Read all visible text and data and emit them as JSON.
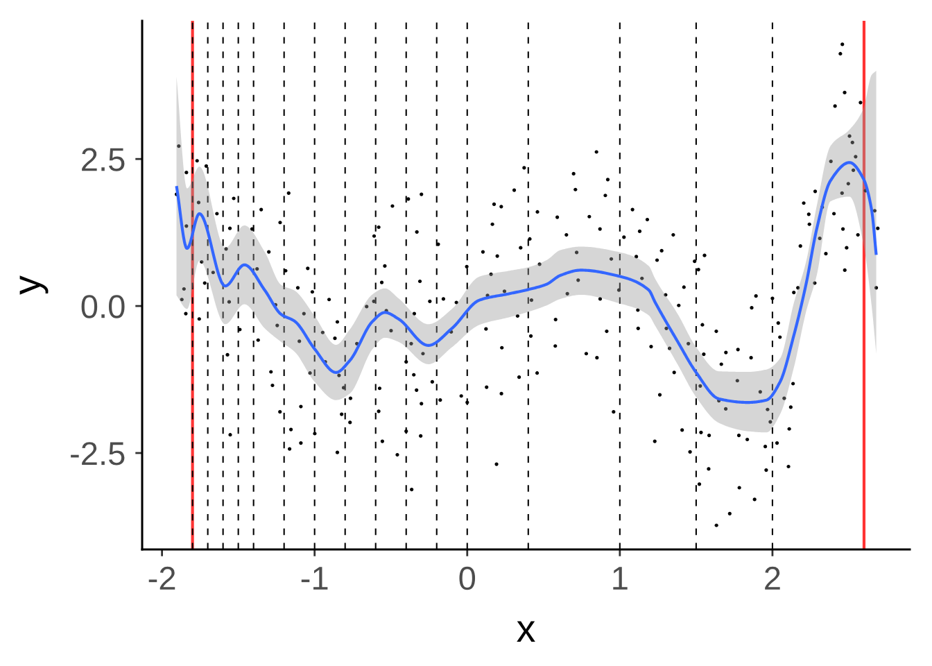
{
  "chart_data": {
    "type": "scatter",
    "xlabel": "x",
    "ylabel": "y",
    "xlim": [
      -2.13,
      2.9
    ],
    "ylim": [
      -4.14,
      4.85
    ],
    "xticks": [
      -2,
      -1,
      0,
      1,
      2
    ],
    "yticks": [
      -2.5,
      {
        "value": 0,
        "label": "0.0"
      },
      2.5
    ],
    "grid": false,
    "marker": "circle",
    "series": [
      {
        "color": "#000000",
        "x": [
          -1.89,
          -1.84,
          -1.77,
          -1.71,
          -1.905,
          -1.76,
          -1.64,
          -1.53,
          -1.555,
          -1.84,
          -1.41,
          -1.35,
          -1.58,
          -1.3,
          -1.377,
          -1.74,
          -1.665,
          -1.72,
          -1.856,
          -1.226,
          -1.17,
          -1.19,
          -1.045,
          -1.11,
          -0.49,
          -0.61,
          -0.58,
          -0.54,
          -0.56,
          -1.87,
          -1.844,
          -1.756,
          -1.56,
          -1.49,
          -1.571,
          -1.37,
          -1.286,
          -1.276,
          -1.256,
          -1.245,
          -1.227,
          -1.553,
          -1.155,
          -1.164,
          -1.09,
          -1.09,
          -1.07,
          -1.1,
          -1.03,
          -0.999,
          -1.015,
          -0.905,
          -0.947,
          -0.851,
          -0.867,
          -0.93,
          -0.84,
          -0.81,
          -0.765,
          -0.823,
          -0.768,
          -0.851,
          -0.723,
          -0.659,
          -0.612,
          -0.53,
          -0.574,
          -0.58,
          -0.556,
          -0.458,
          -0.499,
          -0.386,
          -0.3,
          -0.33,
          -0.19,
          -0.003,
          0.156,
          -0.31,
          0.103,
          0.176,
          0.223,
          0.165,
          0.197,
          0.308,
          0.373,
          0.35,
          0.41,
          0.46,
          0.59,
          0.65,
          0.697,
          0.709,
          0.8,
          0.847,
          0.921,
          0.905,
          0.87,
          1.027,
          1.083,
          1.13,
          1.18,
          1.108,
          0.717,
          0.474,
          0.727,
          0.944,
          1.145,
          -0.4,
          -0.35,
          -0.332,
          -0.3,
          -0.229,
          -0.177,
          -0.039,
          0.0,
          -0.4,
          -0.305,
          -0.364,
          0.127,
          0.224,
          0.192,
          0.34,
          0.458,
          0.959,
          1.229,
          -0.245,
          -0.156,
          -0.347,
          -0.367,
          -0.29,
          -0.105,
          -0.071,
          0.133,
          0.123,
          0.227,
          0.244,
          0.33,
          0.417,
          0.421,
          0.579,
          0.577,
          0.656,
          0.78,
          0.85,
          0.914,
          0.871,
          0.994,
          1.118,
          1.12,
          1.205,
          1.35,
          1.274,
          1.244,
          1.49,
          1.555,
          1.515,
          1.42,
          1.3,
          1.386,
          1.305,
          1.326,
          1.356,
          1.449,
          1.262,
          1.541,
          1.632,
          1.55,
          1.695,
          1.665,
          1.774,
          1.86,
          1.892,
          1.864,
          2.0,
          2.14,
          2.038,
          2.049,
          1.77,
          1.92,
          1.527,
          1.649,
          1.694,
          1.968,
          1.986,
          2.077,
          2.135,
          2.12,
          2.11,
          1.408,
          1.532,
          1.585,
          1.46,
          1.78,
          1.835,
          1.953,
          2.03,
          1.582,
          1.959,
          2.105,
          1.521,
          1.783,
          1.883,
          1.72,
          1.633,
          2.458,
          2.445,
          2.473,
          2.41,
          2.577,
          2.505,
          2.524,
          2.545,
          2.383,
          2.53,
          2.497,
          2.456,
          2.61,
          2.28,
          2.205,
          2.326,
          2.238,
          2.403,
          2.67,
          2.242,
          2.462,
          2.69,
          2.56,
          2.31,
          2.183,
          2.486,
          2.35,
          2.474,
          2.277,
          2.68,
          2.167
        ],
        "values": [
          2.72,
          2.27,
          2.47,
          2.38,
          1.9,
          1.76,
          1.57,
          1.83,
          1.32,
          1.36,
          1.31,
          1.64,
          0.97,
          0.92,
          0.63,
          0.75,
          0.57,
          0.39,
          0.29,
          1.42,
          1.92,
          0.6,
          0.64,
          0.31,
          1.7,
          1.19,
          1.34,
          0.68,
          0.4,
          0.11,
          -0.13,
          -0.22,
          0.07,
          -0.4,
          -0.83,
          -0.58,
          -1.12,
          -1.35,
          0.02,
          -0.33,
          -1.8,
          -2.19,
          -2.1,
          -2.43,
          -1.71,
          -2.33,
          -0.13,
          -0.6,
          -1.14,
          -2.17,
          0.24,
          0.11,
          -0.45,
          -0.27,
          -0.55,
          -0.95,
          -1.18,
          -1.39,
          -1.57,
          -1.84,
          -1.98,
          -2.49,
          -0.64,
          -0.01,
          0.08,
          -0.08,
          -1.4,
          -1.79,
          -2.3,
          -2.53,
          -0.42,
          1.82,
          1.9,
          1.26,
          1.05,
          0.67,
          0.54,
          0.42,
          0.92,
          1.73,
          1.69,
          1.39,
          0.85,
          1.97,
          2.35,
          0.99,
          1.14,
          1.6,
          1.51,
          1.21,
          2.25,
          1.98,
          1.52,
          2.62,
          2.15,
          1.88,
          1.31,
          1.17,
          1.64,
          1.27,
          1.47,
          0.84,
          0.91,
          0.71,
          0.44,
          0.8,
          0.47,
          -0.95,
          -1.17,
          -1.43,
          -1.66,
          -1.29,
          -1.6,
          -1.53,
          -1.64,
          -2.13,
          -2.21,
          -3.12,
          -1.38,
          -1.49,
          -2.69,
          -1.21,
          -1.14,
          -1.8,
          -2.3,
          0.08,
          0.12,
          -0.13,
          -0.64,
          -0.81,
          -0.44,
          0.06,
          0.18,
          -0.39,
          -0.71,
          0.25,
          -0.17,
          -0.51,
          0.1,
          -0.23,
          -0.68,
          0.21,
          -0.81,
          -0.88,
          -0.43,
          0.12,
          0.27,
          -0.07,
          -0.38,
          -0.69,
          1.21,
          0.94,
          0.78,
          0.76,
          0.86,
          0.62,
          0.32,
          0.19,
          0.01,
          -0.38,
          -0.72,
          -1.13,
          -0.64,
          -1.51,
          -0.32,
          -0.43,
          -0.82,
          -0.79,
          -0.99,
          -0.74,
          -0.88,
          0.17,
          -0.03,
          0.13,
          0.23,
          -0.29,
          -0.53,
          -1.27,
          -1.46,
          -1.36,
          -1.61,
          -1.75,
          -1.76,
          -1.97,
          -1.57,
          -1.32,
          -1.72,
          -2.09,
          -2.11,
          -2.15,
          -2.2,
          -2.48,
          -2.2,
          -2.27,
          -2.39,
          -2.33,
          -2.77,
          -2.79,
          -2.73,
          -3.03,
          -3.09,
          -3.29,
          -3.53,
          -3.73,
          4.45,
          4.29,
          3.63,
          3.4,
          3.46,
          2.89,
          2.78,
          2.54,
          2.46,
          2.31,
          2.08,
          1.92,
          1.96,
          1.95,
          1.75,
          1.68,
          1.56,
          1.57,
          1.62,
          1.39,
          1.31,
          1.32,
          1.21,
          1.15,
          1.02,
          0.99,
          0.89,
          0.61,
          0.39,
          0.31,
          0.31
        ]
      },
      {
        "type": "line",
        "color": "#3366ff",
        "marker": "none",
        "line_style": "solid",
        "x": [
          -1.905,
          -1.836,
          -1.755,
          -1.586,
          -1.46,
          -1.327,
          -1.22,
          -1.13,
          -1.0,
          -0.86,
          -0.77,
          -0.62,
          -0.54,
          -0.45,
          -0.255,
          -0.1,
          0.08,
          0.277,
          0.4,
          0.52,
          0.61,
          0.745,
          0.99,
          1.19,
          1.23,
          1.38,
          1.5,
          1.65,
          1.84,
          1.96,
          2.05,
          2.14,
          2.22,
          2.29,
          2.38,
          2.505,
          2.595,
          2.65,
          2.68
        ],
        "values": [
          2.04,
          0.98,
          1.57,
          0.34,
          0.7,
          0.27,
          -0.14,
          -0.26,
          -0.73,
          -1.13,
          -0.93,
          -0.26,
          -0.11,
          -0.22,
          -0.67,
          -0.38,
          0.1,
          0.21,
          0.28,
          0.37,
          0.52,
          0.61,
          0.51,
          0.27,
          0.07,
          -0.61,
          -1.13,
          -1.58,
          -1.64,
          -1.6,
          -1.29,
          -0.5,
          0.37,
          1.31,
          2.13,
          2.44,
          2.17,
          1.63,
          0.87
        ],
        "upper": [
          3.9,
          2.0,
          2.37,
          0.99,
          1.37,
          0.92,
          0.36,
          0.26,
          -0.17,
          -0.66,
          -0.4,
          0.2,
          0.3,
          0.13,
          -0.31,
          -0.05,
          0.5,
          0.6,
          0.66,
          0.78,
          0.95,
          1.01,
          0.92,
          0.68,
          0.47,
          -0.14,
          -0.7,
          -1.11,
          -1.12,
          -1.08,
          -0.89,
          0.05,
          0.75,
          1.7,
          2.72,
          3.0,
          3.35,
          3.93,
          4.0
        ],
        "lower": [
          0.18,
          -0.05,
          0.77,
          -0.31,
          0.03,
          -0.38,
          -0.61,
          -0.78,
          -1.29,
          -1.6,
          -1.49,
          -0.73,
          -0.54,
          -0.61,
          -0.99,
          -0.7,
          -0.32,
          -0.19,
          -0.1,
          0.01,
          0.12,
          0.19,
          0.05,
          -0.16,
          -0.33,
          -1.0,
          -1.55,
          -1.99,
          -2.13,
          -2.15,
          -1.84,
          -1.05,
          -0.1,
          0.52,
          1.78,
          1.86,
          1.07,
          0.0,
          -0.81
        ]
      }
    ],
    "ref_lines": [
      {
        "axis": "x",
        "value": -1.8,
        "color": "#ff3333",
        "line_style": "solid"
      },
      {
        "axis": "x",
        "value": 2.6,
        "color": "#ff3333",
        "line_style": "solid"
      },
      {
        "axis": "x",
        "value": -1.8,
        "color": "#000000",
        "line_style": "dashed"
      },
      {
        "axis": "x",
        "value": -1.7,
        "color": "#000000",
        "line_style": "dashed"
      },
      {
        "axis": "x",
        "value": -1.6,
        "color": "#000000",
        "line_style": "dashed"
      },
      {
        "axis": "x",
        "value": -1.5,
        "color": "#000000",
        "line_style": "dashed"
      },
      {
        "axis": "x",
        "value": -1.4,
        "color": "#000000",
        "line_style": "dashed"
      },
      {
        "axis": "x",
        "value": -1.2,
        "color": "#000000",
        "line_style": "dashed"
      },
      {
        "axis": "x",
        "value": -1.0,
        "color": "#000000",
        "line_style": "dashed"
      },
      {
        "axis": "x",
        "value": -0.8,
        "color": "#000000",
        "line_style": "dashed"
      },
      {
        "axis": "x",
        "value": -0.6,
        "color": "#000000",
        "line_style": "dashed"
      },
      {
        "axis": "x",
        "value": -0.4,
        "color": "#000000",
        "line_style": "dashed"
      },
      {
        "axis": "x",
        "value": -0.2,
        "color": "#000000",
        "line_style": "dashed"
      },
      {
        "axis": "x",
        "value": 0.0,
        "color": "#000000",
        "line_style": "dashed"
      },
      {
        "axis": "x",
        "value": 0.4,
        "color": "#000000",
        "line_style": "dashed"
      },
      {
        "axis": "x",
        "value": 1.0,
        "color": "#000000",
        "line_style": "dashed"
      },
      {
        "axis": "x",
        "value": 1.5,
        "color": "#000000",
        "line_style": "dashed"
      },
      {
        "axis": "x",
        "value": 2.0,
        "color": "#000000",
        "line_style": "dashed"
      }
    ]
  }
}
